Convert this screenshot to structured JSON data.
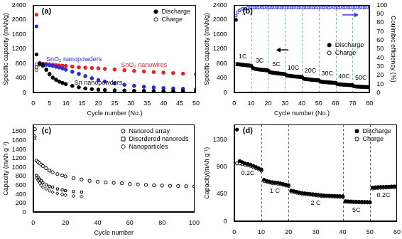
{
  "chart_data": [
    {
      "type": "scatter",
      "title": "(a)",
      "x_label": "Cycle number (No.)",
      "y_label": "Specific capacity (mAh/g)",
      "xlim": [
        0,
        50
      ],
      "xticks": [
        0,
        5,
        10,
        15,
        20,
        25,
        30,
        35,
        40,
        45,
        50
      ],
      "ylim": [
        0,
        2400
      ],
      "yticks": [
        0,
        400,
        800,
        1200,
        1600,
        2000,
        2400
      ],
      "grid": false,
      "legend": "top-right",
      "x": [
        1,
        2,
        3,
        4,
        5,
        6,
        7,
        8,
        9,
        10,
        12,
        14,
        16,
        18,
        20,
        22,
        25,
        28,
        31,
        34,
        37,
        40,
        43,
        46,
        50
      ],
      "series": [
        {
          "name": "Discharge",
          "group": "Sn nanopowders",
          "color": "#000000",
          "marker": "circle",
          "values": [
            1050,
            800,
            760,
            640,
            520,
            420,
            360,
            310,
            270,
            240,
            190,
            150,
            120,
            100,
            85,
            75,
            65,
            60,
            55,
            52,
            50,
            48,
            46,
            45,
            44
          ]
        },
        {
          "name": "Charge",
          "group": "Sn nanopowders",
          "color": "#000000",
          "marker": "circle_open",
          "values": [
            700,
            770,
            730,
            620,
            500,
            410,
            350,
            300,
            265,
            235,
            185,
            148,
            118,
            98,
            83,
            73,
            64,
            59,
            54,
            51,
            49,
            47,
            45,
            44,
            43
          ]
        },
        {
          "name": "Discharge",
          "group": "SnO₂ nanopowders",
          "color": "#2b2bd6",
          "marker": "circle",
          "values": [
            1820,
            800,
            790,
            780,
            760,
            740,
            720,
            700,
            670,
            640,
            580,
            520,
            460,
            400,
            350,
            310,
            260,
            220,
            190,
            165,
            145,
            130,
            120,
            110,
            100
          ]
        },
        {
          "name": "Charge",
          "group": "SnO₂ nanopowders",
          "color": "#2b2bd6",
          "marker": "circle_open",
          "values": [
            780,
            780,
            775,
            765,
            750,
            730,
            710,
            690,
            660,
            630,
            570,
            510,
            450,
            395,
            345,
            305,
            255,
            218,
            188,
            163,
            143,
            128,
            118,
            108,
            98
          ]
        },
        {
          "name": "Discharge",
          "group": "SnO₂ nanowires",
          "color": "#e8231f",
          "marker": "circle",
          "values": [
            2140,
            820,
            800,
            790,
            780,
            770,
            760,
            750,
            745,
            740,
            720,
            700,
            690,
            680,
            670,
            655,
            640,
            620,
            600,
            585,
            570,
            555,
            540,
            525,
            510
          ]
        },
        {
          "name": "Charge",
          "group": "SnO₂ nanowires",
          "color": "#e8231f",
          "marker": "circle_open",
          "values": [
            620,
            780,
            775,
            770,
            765,
            760,
            752,
            745,
            740,
            735,
            715,
            697,
            686,
            676,
            666,
            652,
            636,
            616,
            597,
            582,
            567,
            552,
            537,
            522,
            507
          ]
        }
      ]
    },
    {
      "type": "scatter",
      "title": "(b)",
      "x_label": "Cycle number (No.)",
      "y_label": "Specific capacity (mAh/g)",
      "y2_label": "Coulmbic efficiency (%)",
      "xlim": [
        0,
        80
      ],
      "xticks": [
        0,
        10,
        20,
        30,
        40,
        50,
        60,
        70,
        80
      ],
      "ylim": [
        0,
        2400
      ],
      "yticks": [
        0,
        400,
        800,
        1200,
        1600,
        2000,
        2400
      ],
      "y2lim": [
        0,
        100
      ],
      "y2ticks": [
        0,
        10,
        20,
        30,
        40,
        50,
        60,
        70,
        80,
        90,
        100
      ],
      "grid": false,
      "legend": "right",
      "rates": [
        {
          "label": "1C",
          "start": 0,
          "end": 10
        },
        {
          "label": "3C",
          "start": 10,
          "end": 20
        },
        {
          "label": "5C",
          "start": 20,
          "end": 30
        },
        {
          "label": "10C",
          "start": 30,
          "end": 40
        },
        {
          "label": "20C",
          "start": 40,
          "end": 50
        },
        {
          "label": "30C",
          "start": 50,
          "end": 60
        },
        {
          "label": "40C",
          "start": 60,
          "end": 70
        },
        {
          "label": "50C",
          "start": 70,
          "end": 80
        }
      ],
      "x": [
        1,
        2,
        3,
        4,
        5,
        6,
        7,
        8,
        9,
        10,
        11,
        12,
        13,
        14,
        15,
        16,
        17,
        18,
        19,
        20,
        21,
        22,
        23,
        24,
        25,
        26,
        27,
        28,
        29,
        30,
        31,
        32,
        33,
        34,
        35,
        36,
        37,
        38,
        39,
        40,
        41,
        42,
        43,
        44,
        45,
        46,
        47,
        48,
        49,
        50,
        51,
        52,
        53,
        54,
        55,
        56,
        57,
        58,
        59,
        60,
        61,
        62,
        63,
        64,
        65,
        66,
        67,
        68,
        69,
        70,
        71,
        72,
        73,
        74,
        75,
        76,
        77,
        78,
        79,
        80
      ],
      "series": [
        {
          "name": "Discharge",
          "color": "#000000",
          "marker": "circle",
          "values": [
            2000,
            790,
            780,
            775,
            770,
            765,
            760,
            755,
            750,
            745,
            680,
            665,
            655,
            648,
            640,
            635,
            630,
            625,
            620,
            615,
            570,
            560,
            552,
            546,
            540,
            535,
            530,
            525,
            520,
            515,
            480,
            472,
            466,
            460,
            455,
            450,
            446,
            442,
            438,
            434,
            390,
            382,
            376,
            370,
            365,
            360,
            356,
            352,
            348,
            344,
            310,
            304,
            299,
            295,
            291,
            287,
            283,
            280,
            277,
            274,
            240,
            235,
            231,
            227,
            224,
            221,
            218,
            215,
            212,
            210,
            180,
            176,
            173,
            170,
            167,
            165,
            163,
            161,
            159,
            157
          ]
        },
        {
          "name": "Charge",
          "color": "#000000",
          "marker": "circle_open",
          "values": [
            780,
            780,
            772,
            767,
            762,
            757,
            752,
            747,
            742,
            737,
            672,
            657,
            647,
            640,
            632,
            627,
            622,
            617,
            612,
            607,
            562,
            552,
            544,
            538,
            532,
            527,
            522,
            517,
            512,
            507,
            472,
            464,
            458,
            452,
            447,
            442,
            438,
            434,
            430,
            426,
            382,
            374,
            368,
            362,
            357,
            352,
            348,
            344,
            340,
            336,
            302,
            296,
            291,
            287,
            283,
            279,
            275,
            272,
            269,
            266,
            232,
            227,
            223,
            219,
            216,
            213,
            210,
            207,
            204,
            202,
            172,
            168,
            165,
            162,
            159,
            157,
            155,
            153,
            151,
            149
          ]
        },
        {
          "color": "#3b3bdc",
          "marker": "square_open",
          "axis": "y2",
          "values": [
            88,
            92,
            94,
            95,
            96,
            96,
            96,
            97,
            97,
            97,
            97,
            97,
            98,
            97,
            98,
            98,
            97,
            98,
            98,
            97,
            98,
            97,
            98,
            98,
            97,
            98,
            98,
            97,
            98,
            98,
            97,
            98,
            98,
            97,
            98,
            98,
            98,
            97,
            98,
            98,
            97,
            98,
            98,
            97,
            98,
            98,
            97,
            98,
            98,
            97,
            98,
            98,
            97,
            98,
            98,
            97,
            98,
            98,
            98,
            97,
            98,
            97,
            98,
            98,
            97,
            98,
            98,
            97,
            98,
            98,
            97,
            98,
            98,
            97,
            98,
            98,
            97,
            98,
            98,
            98
          ]
        }
      ]
    },
    {
      "type": "scatter",
      "title": "(c)",
      "x_label": "Cycle number",
      "y_label": "Capacity (mAh g⁻¹)",
      "xlim": [
        0,
        100
      ],
      "xticks": [
        0,
        20,
        40,
        60,
        80,
        100
      ],
      "ylim": [
        0,
        1950
      ],
      "yticks": [
        0,
        200,
        400,
        600,
        800,
        1000,
        1200,
        1400,
        1600,
        1800
      ],
      "grid": false,
      "legend": "top-right",
      "x": [
        1,
        2,
        3,
        4,
        5,
        6,
        8,
        10,
        12,
        15,
        18,
        20,
        25,
        30,
        35,
        40,
        45,
        50,
        55,
        60,
        65,
        70,
        75,
        80,
        85,
        90,
        95,
        100
      ],
      "series": [
        {
          "name": "Nanorod array",
          "color": "#000000",
          "marker": "circle_open",
          "values": [
            1850,
            1150,
            1120,
            1090,
            1060,
            1030,
            980,
            930,
            890,
            850,
            820,
            800,
            760,
            730,
            700,
            680,
            665,
            655,
            645,
            630,
            620,
            610,
            600,
            595,
            590,
            585,
            580,
            575
          ]
        },
        {
          "name": "Disordered nanorods",
          "color": "#000000",
          "marker": "square_open",
          "values": [
            1650,
            820,
            780,
            740,
            700,
            660,
            610,
            580,
            560,
            520,
            500,
            480,
            460,
            450,
            null,
            null,
            null,
            null,
            null,
            null,
            null,
            null,
            null,
            null,
            null,
            null,
            null,
            null
          ]
        },
        {
          "name": "Nanoparticles",
          "color": "#000000",
          "marker": "diamond_open",
          "values": [
            1700,
            760,
            700,
            650,
            600,
            560,
            520,
            480,
            450,
            420,
            400,
            380,
            360,
            350,
            null,
            null,
            null,
            null,
            null,
            null,
            null,
            null,
            null,
            null,
            null,
            null,
            null,
            null
          ]
        }
      ]
    },
    {
      "type": "scatter",
      "title": "(d)",
      "y_label": "Capacity(mAh g⁻¹)",
      "xlim": [
        0,
        60
      ],
      "xticks": [
        0,
        10,
        20,
        30,
        40,
        50,
        60
      ],
      "ylim": [
        0,
        1600
      ],
      "yticks": [
        0,
        450,
        900,
        1350
      ],
      "grid": false,
      "legend": "top-right",
      "rates": [
        {
          "label": "0.2C",
          "start": 0,
          "end": 10
        },
        {
          "label": "1 C",
          "start": 10,
          "end": 20
        },
        {
          "label": "2 C",
          "start": 20,
          "end": 40
        },
        {
          "label": "5C",
          "start": 40,
          "end": 50
        },
        {
          "label": "0.2C",
          "start": 50,
          "end": 60
        }
      ],
      "x": [
        1,
        2,
        3,
        4,
        5,
        6,
        7,
        8,
        9,
        10,
        11,
        12,
        13,
        14,
        15,
        16,
        17,
        18,
        19,
        20,
        21,
        22,
        23,
        24,
        25,
        26,
        27,
        28,
        29,
        30,
        31,
        32,
        33,
        34,
        35,
        36,
        37,
        38,
        39,
        40,
        41,
        42,
        43,
        44,
        45,
        46,
        47,
        48,
        49,
        50,
        51,
        52,
        53,
        54,
        55,
        56,
        57,
        58,
        59,
        60
      ],
      "series": [
        {
          "name": "Discharge",
          "color": "#000000",
          "marker": "circle",
          "values": [
            1520,
            1000,
            980,
            960,
            950,
            940,
            920,
            900,
            880,
            860,
            690,
            670,
            660,
            650,
            645,
            640,
            630,
            620,
            610,
            600,
            510,
            500,
            490,
            480,
            470,
            465,
            460,
            455,
            450,
            445,
            440,
            435,
            430,
            428,
            426,
            424,
            422,
            420,
            418,
            416,
            335,
            332,
            330,
            328,
            326,
            325,
            324,
            323,
            322,
            321,
            560,
            565,
            568,
            570,
            572,
            574,
            576,
            578,
            580,
            582
          ]
        },
        {
          "name": "Charge",
          "color": "#000000",
          "marker": "circle_open",
          "values": [
            960,
            960,
            950,
            940,
            930,
            920,
            900,
            880,
            860,
            840,
            670,
            655,
            645,
            635,
            630,
            625,
            615,
            605,
            595,
            585,
            495,
            485,
            475,
            466,
            457,
            452,
            447,
            442,
            437,
            432,
            427,
            422,
            418,
            416,
            414,
            412,
            410,
            408,
            406,
            404,
            325,
            322,
            320,
            318,
            316,
            315,
            314,
            313,
            312,
            311,
            545,
            550,
            553,
            556,
            558,
            560,
            562,
            564,
            566,
            568
          ]
        }
      ]
    }
  ]
}
